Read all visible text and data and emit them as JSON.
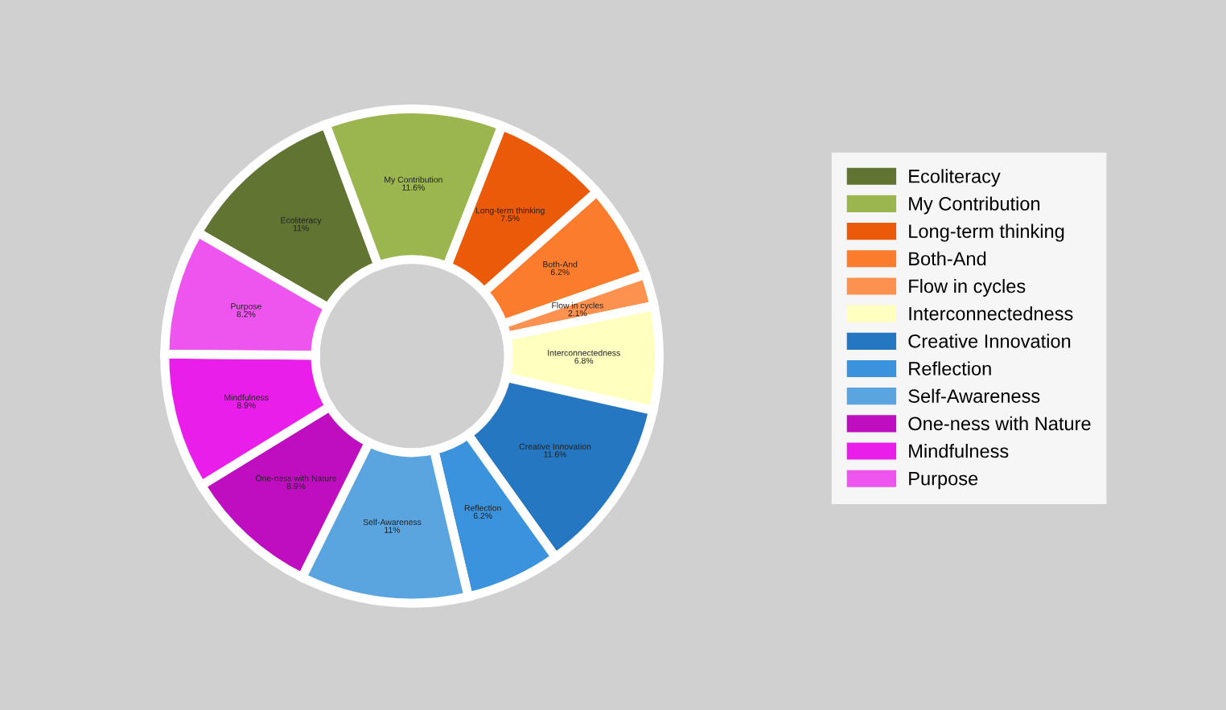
{
  "chart_data": {
    "type": "donut",
    "categories": [
      "Ecoliteracy",
      "My Contribution",
      "Long-term thinking",
      "Both-And",
      "Flow in cycles",
      "Interconnectedness",
      "Creative Innovation",
      "Reflection",
      "Self-Awareness",
      "One-ness with Nature",
      "Mindfulness",
      "Purpose"
    ],
    "values": [
      11,
      11.6,
      7.5,
      6.2,
      2.1,
      6.8,
      11.6,
      6.2,
      11,
      8.9,
      8.9,
      8.2
    ],
    "value_labels": [
      "11%",
      "11.6%",
      "7.5%",
      "6.2%",
      "2.1%",
      "6.8%",
      "11.6%",
      "6.2%",
      "11%",
      "8.9%",
      "8.9%",
      "8.2%"
    ],
    "colors": [
      "#627432",
      "#9bb64f",
      "#eb5a08",
      "#fb7c2c",
      "#fd9150",
      "#ffffc0",
      "#2477c0",
      "#3a93dc",
      "#5aa5e0",
      "#bf0ec0",
      "#ea1eea",
      "#ee55ee"
    ],
    "legend": "right"
  }
}
